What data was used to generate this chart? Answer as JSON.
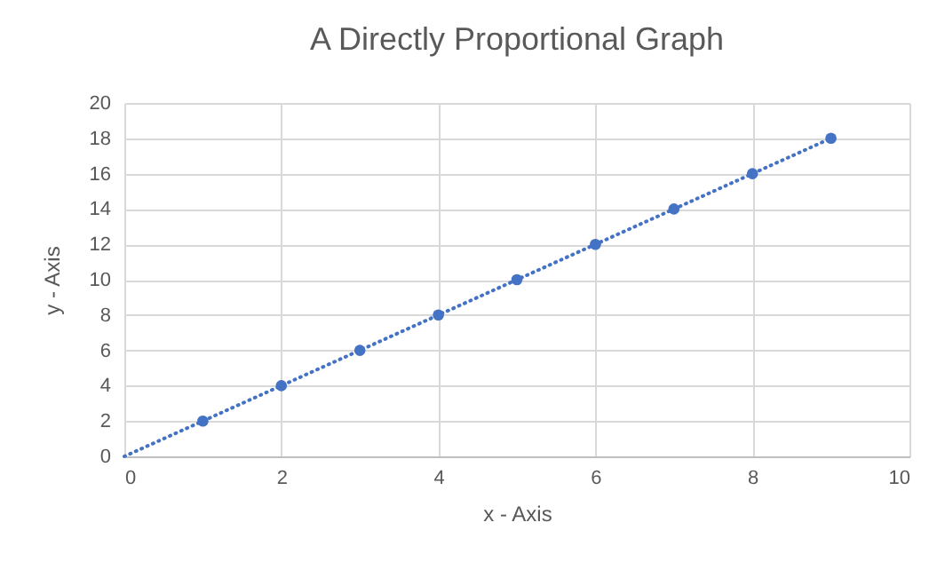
{
  "chart_data": {
    "type": "scatter",
    "title": "A Directly Proportional Graph",
    "xlabel": "x - Axis",
    "ylabel": "y - Axis",
    "series": [
      {
        "color": "#4472c4",
        "marker": "circle",
        "x": [
          1,
          2,
          3,
          4,
          5,
          6,
          7,
          8,
          9
        ],
        "values": [
          2,
          4,
          6,
          8,
          10,
          12,
          14,
          16,
          18
        ]
      },
      {
        "type": "line",
        "color": "#4472c4",
        "line_style": "dotted",
        "x": [
          0,
          9
        ],
        "values": [
          0,
          18
        ]
      }
    ],
    "xlim": [
      0,
      10
    ],
    "xticks": [
      0,
      2,
      4,
      6,
      8,
      10
    ],
    "ylim": [
      0,
      20
    ],
    "yticks": [
      0,
      2,
      4,
      6,
      8,
      10,
      12,
      14,
      16,
      18,
      20
    ],
    "grid": true
  }
}
